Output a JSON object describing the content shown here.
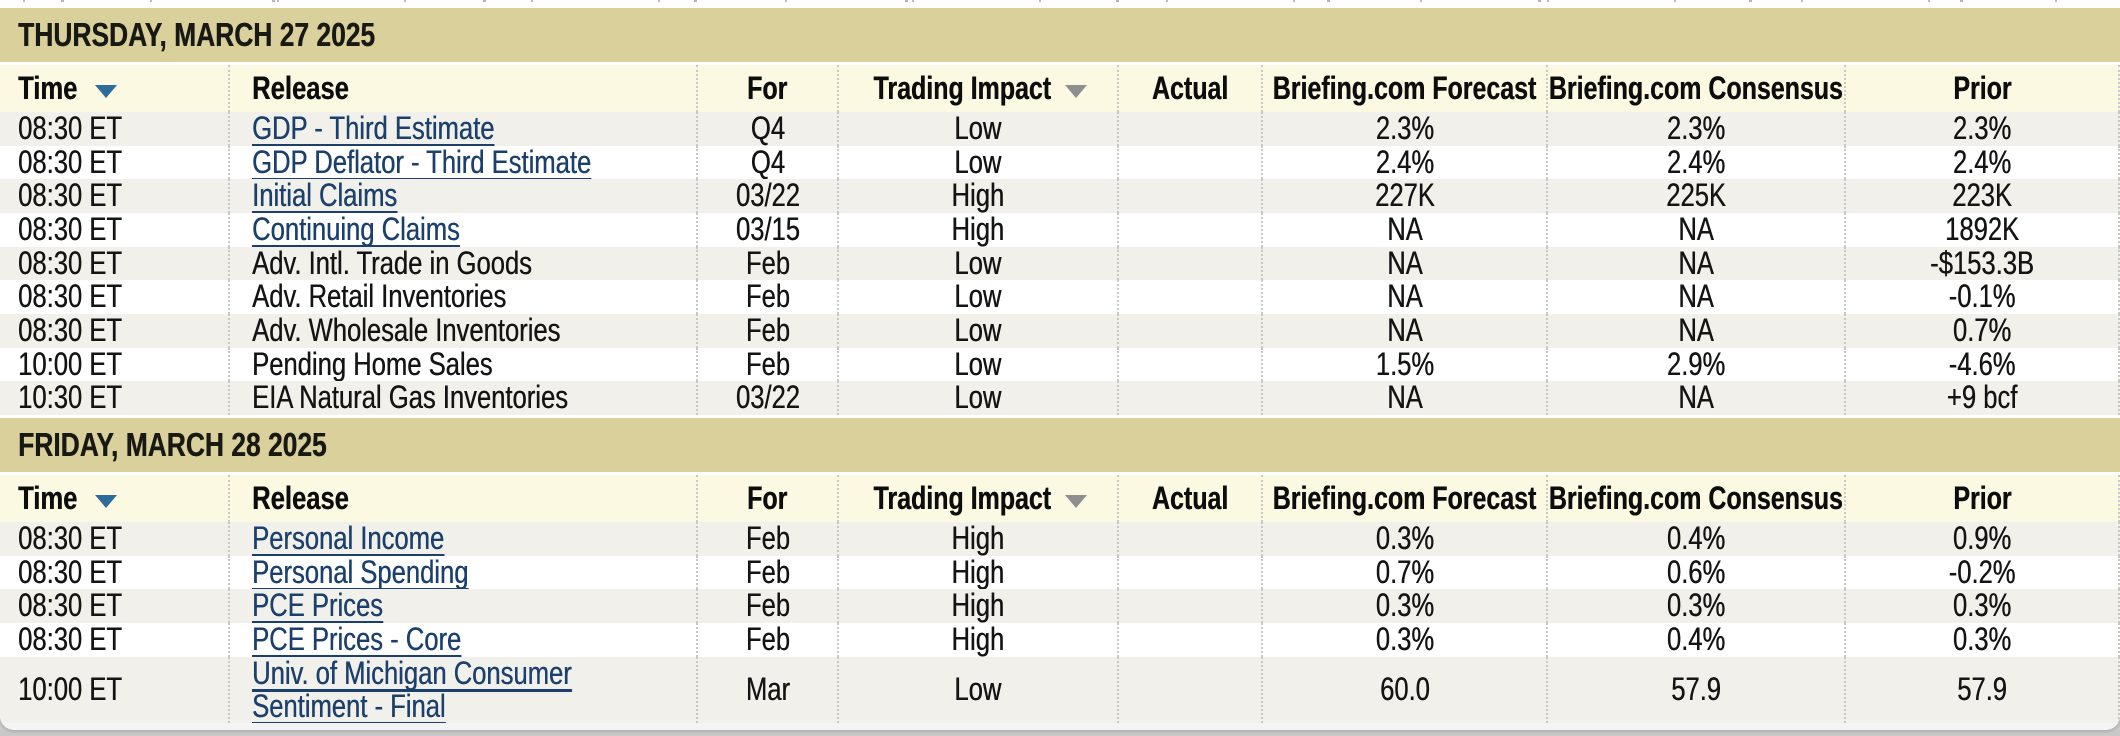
{
  "colors": {
    "date_band_background": "#d9d09b",
    "header_row_background": "#fcf9e3",
    "row_alternate_background": "#f1f0ea",
    "row_background": "#ffffff",
    "link_color": "#1c406d",
    "text_color": "#141414",
    "sort_arrow_color": "#2d6b9b",
    "filter_arrow_color": "#8f8f8f",
    "column_separator_color": "#c9c9c3"
  },
  "columns": {
    "time": "Time",
    "release": "Release",
    "for": "For",
    "trading_impact": "Trading Impact",
    "actual": "Actual",
    "forecast": "Briefing.com Forecast",
    "consensus": "Briefing.com Consensus",
    "prior": "Prior"
  },
  "icons": {
    "time_sort_icon": "triangle-down",
    "trading_impact_filter_icon": "triangle-down"
  },
  "sections": [
    {
      "date": "THURSDAY, MARCH 27 2025",
      "rows": [
        {
          "time": "08:30 ET",
          "release": "GDP - Third Estimate",
          "linked": true,
          "for": "Q4",
          "trading_impact": "Low",
          "actual": "",
          "forecast": "2.3%",
          "consensus": "2.3%",
          "prior": "2.3%"
        },
        {
          "time": "08:30 ET",
          "release": "GDP Deflator - Third Estimate",
          "linked": true,
          "for": "Q4",
          "trading_impact": "Low",
          "actual": "",
          "forecast": "2.4%",
          "consensus": "2.4%",
          "prior": "2.4%"
        },
        {
          "time": "08:30 ET",
          "release": "Initial Claims",
          "linked": true,
          "for": "03/22",
          "trading_impact": "High",
          "actual": "",
          "forecast": "227K",
          "consensus": "225K",
          "prior": "223K"
        },
        {
          "time": "08:30 ET",
          "release": "Continuing Claims",
          "linked": true,
          "for": "03/15",
          "trading_impact": "High",
          "actual": "",
          "forecast": "NA",
          "consensus": "NA",
          "prior": "1892K"
        },
        {
          "time": "08:30 ET",
          "release": "Adv. Intl. Trade in Goods",
          "linked": false,
          "for": "Feb",
          "trading_impact": "Low",
          "actual": "",
          "forecast": "NA",
          "consensus": "NA",
          "prior": "-$153.3B"
        },
        {
          "time": "08:30 ET",
          "release": "Adv. Retail Inventories",
          "linked": false,
          "for": "Feb",
          "trading_impact": "Low",
          "actual": "",
          "forecast": "NA",
          "consensus": "NA",
          "prior": "-0.1%"
        },
        {
          "time": "08:30 ET",
          "release": "Adv. Wholesale Inventories",
          "linked": false,
          "for": "Feb",
          "trading_impact": "Low",
          "actual": "",
          "forecast": "NA",
          "consensus": "NA",
          "prior": "0.7%"
        },
        {
          "time": "10:00 ET",
          "release": "Pending Home Sales",
          "linked": false,
          "for": "Feb",
          "trading_impact": "Low",
          "actual": "",
          "forecast": "1.5%",
          "consensus": "2.9%",
          "prior": "-4.6%"
        },
        {
          "time": "10:30 ET",
          "release": "EIA Natural Gas Inventories",
          "linked": false,
          "for": "03/22",
          "trading_impact": "Low",
          "actual": "",
          "forecast": "NA",
          "consensus": "NA",
          "prior": "+9 bcf"
        }
      ]
    },
    {
      "date": "FRIDAY, MARCH 28 2025",
      "rows": [
        {
          "time": "08:30 ET",
          "release": "Personal Income",
          "linked": true,
          "for": "Feb",
          "trading_impact": "High",
          "actual": "",
          "forecast": "0.3%",
          "consensus": "0.4%",
          "prior": "0.9%"
        },
        {
          "time": "08:30 ET",
          "release": "Personal Spending",
          "linked": true,
          "for": "Feb",
          "trading_impact": "High",
          "actual": "",
          "forecast": "0.7%",
          "consensus": "0.6%",
          "prior": "-0.2%"
        },
        {
          "time": "08:30 ET",
          "release": "PCE Prices",
          "linked": true,
          "for": "Feb",
          "trading_impact": "High",
          "actual": "",
          "forecast": "0.3%",
          "consensus": "0.3%",
          "prior": "0.3%"
        },
        {
          "time": "08:30 ET",
          "release": "PCE Prices - Core",
          "linked": true,
          "for": "Feb",
          "trading_impact": "High",
          "actual": "",
          "forecast": "0.3%",
          "consensus": "0.4%",
          "prior": "0.3%"
        },
        {
          "time": "10:00 ET",
          "release": "Univ. of Michigan Consumer Sentiment - Final",
          "linked": true,
          "for": "Mar",
          "trading_impact": "Low",
          "actual": "",
          "forecast": "60.0",
          "consensus": "57.9",
          "prior": "57.9"
        }
      ]
    }
  ]
}
